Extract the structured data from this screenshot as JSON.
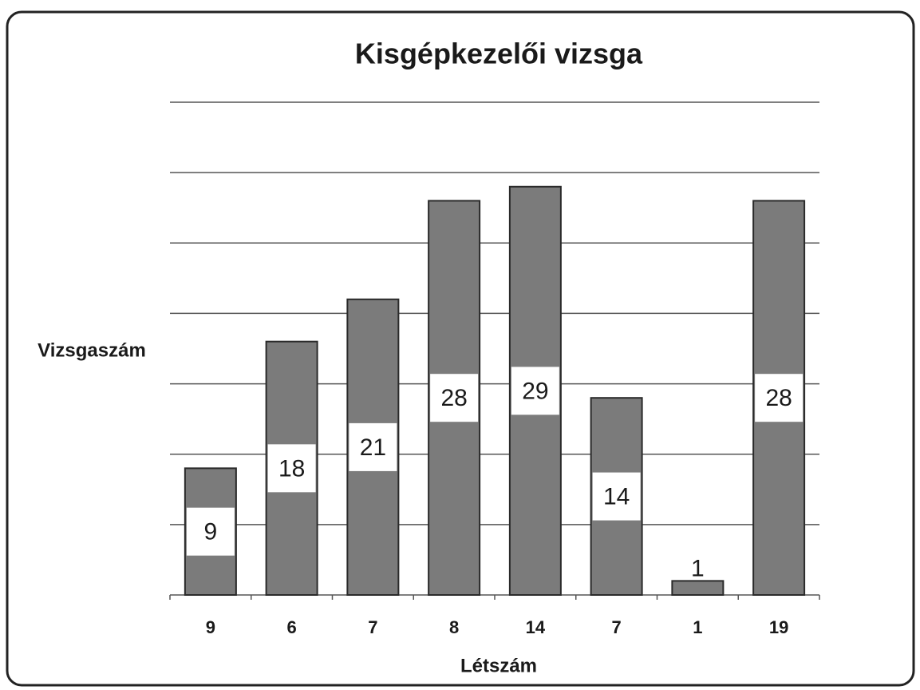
{
  "chart_data": {
    "type": "bar",
    "title": "Kisgépkezelői vizsga",
    "x_label": "Létszám",
    "y_label": "Vizsgaszám",
    "categories": [
      "9",
      "6",
      "7",
      "8",
      "14",
      "7",
      "1",
      "19"
    ],
    "values": [
      9,
      18,
      21,
      28,
      29,
      14,
      1,
      28
    ],
    "color": "#7b7b7b",
    "ylim": [
      0,
      35
    ],
    "yticks": [
      0,
      5,
      10,
      15,
      20,
      25,
      30,
      35
    ],
    "grid": true
  }
}
